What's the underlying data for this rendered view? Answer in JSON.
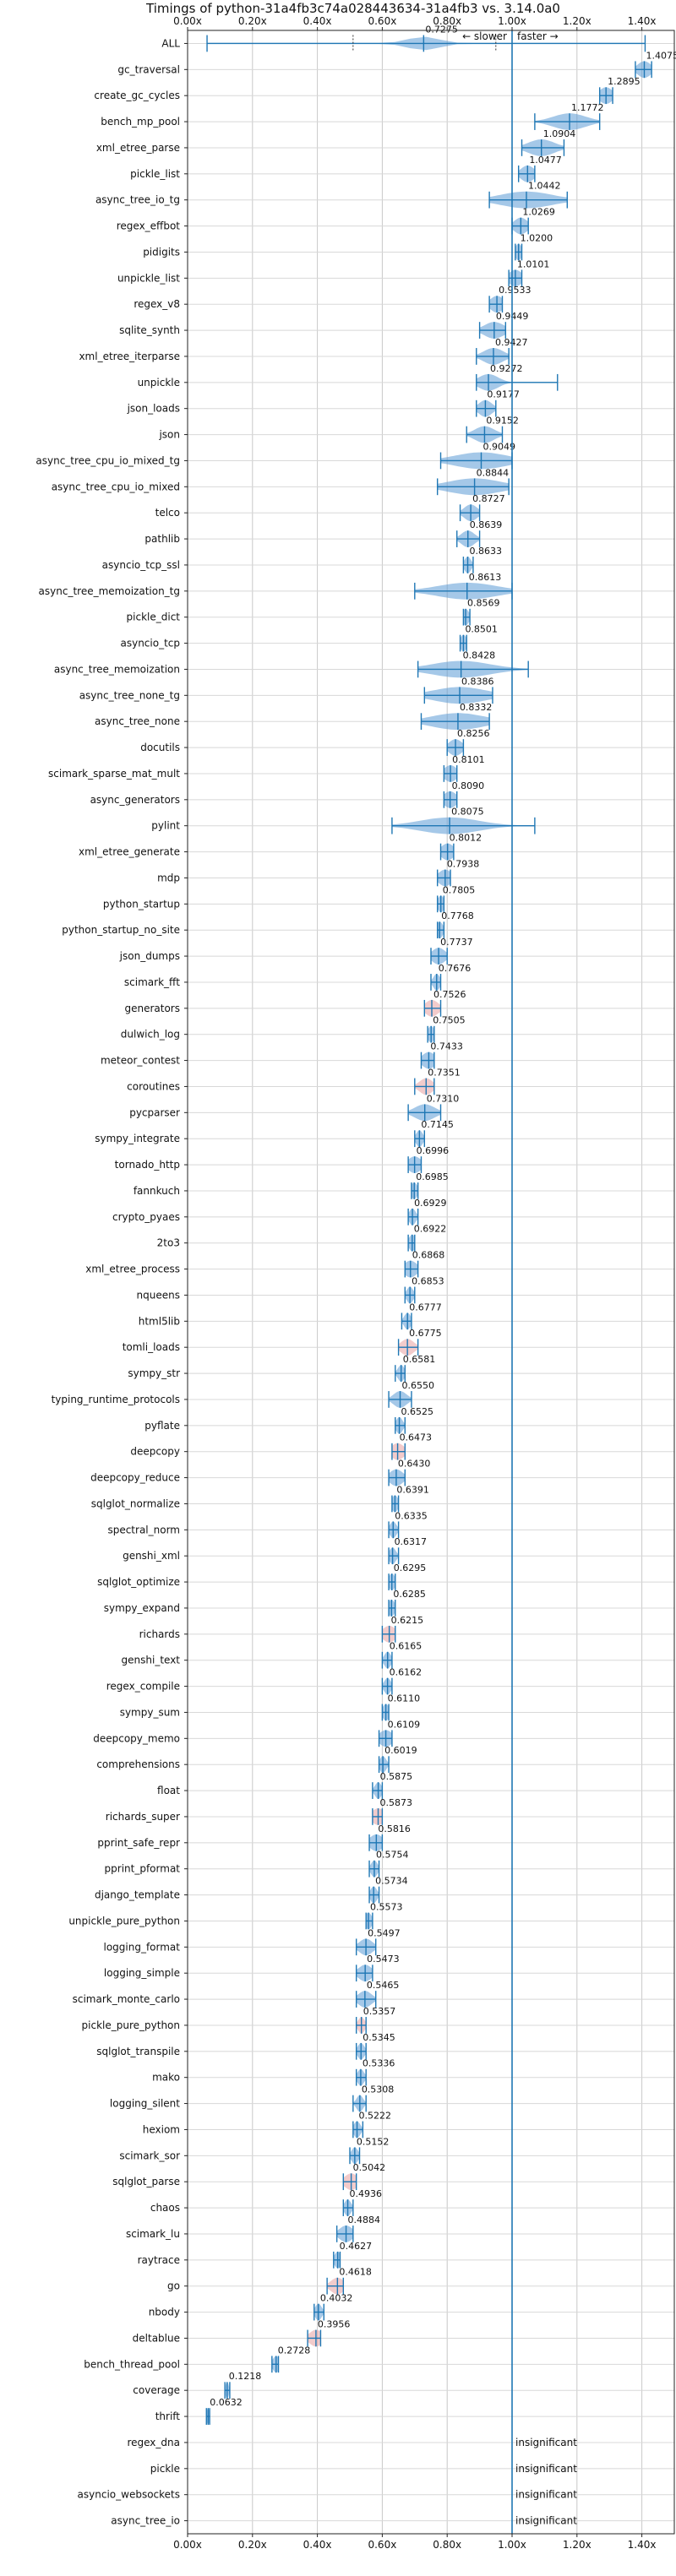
{
  "chart_data": {
    "type": "violin",
    "title": "Timings of python-31a4fb3c74a028443634-31a4fb3 vs. 3.14.0a0",
    "xlim": [
      0.0,
      1.5
    ],
    "xticks": [
      0.0,
      0.2,
      0.4,
      0.6,
      0.8,
      1.0,
      1.2,
      1.4
    ],
    "xtick_labels": [
      "0.00x",
      "0.20x",
      "0.40x",
      "0.60x",
      "0.80x",
      "1.00x",
      "1.20x",
      "1.40x"
    ],
    "grid": true,
    "annotation_slower": "← slower",
    "annotation_faster": "faster →",
    "insignificant_label": "insignificant",
    "benchmarks": [
      {
        "name": "ALL",
        "value": 0.7275,
        "min": 0.06,
        "max": 1.41,
        "spread": 0.05,
        "color": "#5b9bd5"
      },
      {
        "name": "gc_traversal",
        "value": 1.4075,
        "min": 1.38,
        "max": 1.43,
        "spread": 0.02,
        "color": "#5b9bd5"
      },
      {
        "name": "create_gc_cycles",
        "value": 1.2895,
        "min": 1.27,
        "max": 1.31,
        "spread": 0.02,
        "color": "#5b9bd5"
      },
      {
        "name": "bench_mp_pool",
        "value": 1.1772,
        "min": 1.07,
        "max": 1.27,
        "spread": 0.05,
        "color": "#5b9bd5"
      },
      {
        "name": "xml_etree_parse",
        "value": 1.0904,
        "min": 1.03,
        "max": 1.16,
        "spread": 0.04,
        "color": "#5b9bd5"
      },
      {
        "name": "pickle_list",
        "value": 1.0477,
        "min": 1.02,
        "max": 1.07,
        "spread": 0.02,
        "color": "#5b9bd5"
      },
      {
        "name": "async_tree_io_tg",
        "value": 1.0442,
        "min": 0.93,
        "max": 1.17,
        "spread": 0.08,
        "color": "#5b9bd5"
      },
      {
        "name": "regex_effbot",
        "value": 1.0269,
        "min": 1.0,
        "max": 1.05,
        "spread": 0.02,
        "color": "#5b9bd5"
      },
      {
        "name": "pidigits",
        "value": 1.02,
        "min": 1.01,
        "max": 1.03,
        "spread": 0.01,
        "color": "#5b9bd5"
      },
      {
        "name": "unpickle_list",
        "value": 1.0101,
        "min": 0.99,
        "max": 1.03,
        "spread": 0.02,
        "color": "#5b9bd5"
      },
      {
        "name": "regex_v8",
        "value": 0.9533,
        "min": 0.93,
        "max": 0.97,
        "spread": 0.02,
        "color": "#5b9bd5"
      },
      {
        "name": "sqlite_synth",
        "value": 0.9449,
        "min": 0.9,
        "max": 0.98,
        "spread": 0.03,
        "color": "#5b9bd5"
      },
      {
        "name": "xml_etree_iterparse",
        "value": 0.9427,
        "min": 0.89,
        "max": 0.99,
        "spread": 0.03,
        "color": "#5b9bd5"
      },
      {
        "name": "unpickle",
        "value": 0.9272,
        "min": 0.89,
        "max": 1.14,
        "spread": 0.03,
        "color": "#5b9bd5"
      },
      {
        "name": "json_loads",
        "value": 0.9177,
        "min": 0.89,
        "max": 0.95,
        "spread": 0.02,
        "color": "#5b9bd5"
      },
      {
        "name": "json",
        "value": 0.9152,
        "min": 0.86,
        "max": 0.97,
        "spread": 0.03,
        "color": "#5b9bd5"
      },
      {
        "name": "async_tree_cpu_io_mixed_tg",
        "value": 0.9049,
        "min": 0.78,
        "max": 1.0,
        "spread": 0.08,
        "color": "#5b9bd5"
      },
      {
        "name": "async_tree_cpu_io_mixed",
        "value": 0.8844,
        "min": 0.77,
        "max": 0.99,
        "spread": 0.08,
        "color": "#5b9bd5"
      },
      {
        "name": "telco",
        "value": 0.8727,
        "min": 0.84,
        "max": 0.9,
        "spread": 0.02,
        "color": "#5b9bd5"
      },
      {
        "name": "pathlib",
        "value": 0.8639,
        "min": 0.83,
        "max": 0.9,
        "spread": 0.02,
        "color": "#5b9bd5"
      },
      {
        "name": "asyncio_tcp_ssl",
        "value": 0.8633,
        "min": 0.85,
        "max": 0.88,
        "spread": 0.01,
        "color": "#5b9bd5"
      },
      {
        "name": "async_tree_memoization_tg",
        "value": 0.8613,
        "min": 0.7,
        "max": 1.0,
        "spread": 0.09,
        "color": "#5b9bd5"
      },
      {
        "name": "pickle_dict",
        "value": 0.8569,
        "min": 0.85,
        "max": 0.87,
        "spread": 0.01,
        "color": "#5b9bd5"
      },
      {
        "name": "asyncio_tcp",
        "value": 0.8501,
        "min": 0.84,
        "max": 0.86,
        "spread": 0.01,
        "color": "#5b9bd5"
      },
      {
        "name": "async_tree_memoization",
        "value": 0.8428,
        "min": 0.71,
        "max": 1.05,
        "spread": 0.09,
        "color": "#5b9bd5"
      },
      {
        "name": "async_tree_none_tg",
        "value": 0.8386,
        "min": 0.73,
        "max": 0.94,
        "spread": 0.08,
        "color": "#5b9bd5"
      },
      {
        "name": "async_tree_none",
        "value": 0.8332,
        "min": 0.72,
        "max": 0.93,
        "spread": 0.08,
        "color": "#5b9bd5"
      },
      {
        "name": "docutils",
        "value": 0.8256,
        "min": 0.8,
        "max": 0.85,
        "spread": 0.02,
        "color": "#5b9bd5"
      },
      {
        "name": "scimark_sparse_mat_mult",
        "value": 0.8101,
        "min": 0.79,
        "max": 0.83,
        "spread": 0.02,
        "color": "#5b9bd5"
      },
      {
        "name": "async_generators",
        "value": 0.809,
        "min": 0.79,
        "max": 0.83,
        "spread": 0.02,
        "color": "#5b9bd5"
      },
      {
        "name": "pylint",
        "value": 0.8075,
        "min": 0.63,
        "max": 1.07,
        "spread": 0.09,
        "color": "#5b9bd5"
      },
      {
        "name": "xml_etree_generate",
        "value": 0.8012,
        "min": 0.78,
        "max": 0.82,
        "spread": 0.02,
        "color": "#5b9bd5"
      },
      {
        "name": "mdp",
        "value": 0.7938,
        "min": 0.77,
        "max": 0.81,
        "spread": 0.02,
        "color": "#5b9bd5"
      },
      {
        "name": "python_startup",
        "value": 0.7805,
        "min": 0.77,
        "max": 0.79,
        "spread": 0.01,
        "color": "#5b9bd5"
      },
      {
        "name": "python_startup_no_site",
        "value": 0.7768,
        "min": 0.77,
        "max": 0.79,
        "spread": 0.01,
        "color": "#5b9bd5"
      },
      {
        "name": "json_dumps",
        "value": 0.7737,
        "min": 0.75,
        "max": 0.8,
        "spread": 0.02,
        "color": "#5b9bd5"
      },
      {
        "name": "scimark_fft",
        "value": 0.7676,
        "min": 0.75,
        "max": 0.78,
        "spread": 0.01,
        "color": "#5b9bd5"
      },
      {
        "name": "generators",
        "value": 0.7526,
        "min": 0.73,
        "max": 0.78,
        "spread": 0.02,
        "color": "#e8a0a0"
      },
      {
        "name": "dulwich_log",
        "value": 0.7505,
        "min": 0.74,
        "max": 0.76,
        "spread": 0.01,
        "color": "#5b9bd5"
      },
      {
        "name": "meteor_contest",
        "value": 0.7433,
        "min": 0.72,
        "max": 0.76,
        "spread": 0.02,
        "color": "#5b9bd5"
      },
      {
        "name": "coroutines",
        "value": 0.7351,
        "min": 0.7,
        "max": 0.76,
        "spread": 0.02,
        "color": "#e8a0a0"
      },
      {
        "name": "pycparser",
        "value": 0.731,
        "min": 0.68,
        "max": 0.78,
        "spread": 0.03,
        "color": "#5b9bd5"
      },
      {
        "name": "sympy_integrate",
        "value": 0.7145,
        "min": 0.7,
        "max": 0.73,
        "spread": 0.01,
        "color": "#5b9bd5"
      },
      {
        "name": "tornado_http",
        "value": 0.6996,
        "min": 0.68,
        "max": 0.72,
        "spread": 0.02,
        "color": "#5b9bd5"
      },
      {
        "name": "fannkuch",
        "value": 0.6985,
        "min": 0.69,
        "max": 0.71,
        "spread": 0.01,
        "color": "#5b9bd5"
      },
      {
        "name": "crypto_pyaes",
        "value": 0.6929,
        "min": 0.68,
        "max": 0.71,
        "spread": 0.01,
        "color": "#5b9bd5"
      },
      {
        "name": "2to3",
        "value": 0.6922,
        "min": 0.68,
        "max": 0.7,
        "spread": 0.01,
        "color": "#5b9bd5"
      },
      {
        "name": "xml_etree_process",
        "value": 0.6868,
        "min": 0.67,
        "max": 0.71,
        "spread": 0.02,
        "color": "#5b9bd5"
      },
      {
        "name": "nqueens",
        "value": 0.6853,
        "min": 0.67,
        "max": 0.7,
        "spread": 0.01,
        "color": "#5b9bd5"
      },
      {
        "name": "html5lib",
        "value": 0.6777,
        "min": 0.66,
        "max": 0.69,
        "spread": 0.01,
        "color": "#5b9bd5"
      },
      {
        "name": "tomli_loads",
        "value": 0.6775,
        "min": 0.65,
        "max": 0.71,
        "spread": 0.02,
        "color": "#e8a0a0"
      },
      {
        "name": "sympy_str",
        "value": 0.6581,
        "min": 0.64,
        "max": 0.67,
        "spread": 0.01,
        "color": "#5b9bd5"
      },
      {
        "name": "typing_runtime_protocols",
        "value": 0.655,
        "min": 0.62,
        "max": 0.69,
        "spread": 0.02,
        "color": "#5b9bd5"
      },
      {
        "name": "pyflate",
        "value": 0.6525,
        "min": 0.64,
        "max": 0.67,
        "spread": 0.01,
        "color": "#5b9bd5"
      },
      {
        "name": "deepcopy",
        "value": 0.6473,
        "min": 0.63,
        "max": 0.67,
        "spread": 0.02,
        "color": "#e8a0a0"
      },
      {
        "name": "deepcopy_reduce",
        "value": 0.643,
        "min": 0.62,
        "max": 0.67,
        "spread": 0.02,
        "color": "#5b9bd5"
      },
      {
        "name": "sqlglot_normalize",
        "value": 0.6391,
        "min": 0.63,
        "max": 0.65,
        "spread": 0.01,
        "color": "#5b9bd5"
      },
      {
        "name": "spectral_norm",
        "value": 0.6335,
        "min": 0.62,
        "max": 0.65,
        "spread": 0.01,
        "color": "#5b9bd5"
      },
      {
        "name": "genshi_xml",
        "value": 0.6317,
        "min": 0.62,
        "max": 0.65,
        "spread": 0.01,
        "color": "#5b9bd5"
      },
      {
        "name": "sqlglot_optimize",
        "value": 0.6295,
        "min": 0.62,
        "max": 0.64,
        "spread": 0.01,
        "color": "#5b9bd5"
      },
      {
        "name": "sympy_expand",
        "value": 0.6285,
        "min": 0.62,
        "max": 0.64,
        "spread": 0.01,
        "color": "#5b9bd5"
      },
      {
        "name": "richards",
        "value": 0.6215,
        "min": 0.6,
        "max": 0.64,
        "spread": 0.02,
        "color": "#e8a0a0"
      },
      {
        "name": "genshi_text",
        "value": 0.6165,
        "min": 0.6,
        "max": 0.63,
        "spread": 0.01,
        "color": "#5b9bd5"
      },
      {
        "name": "regex_compile",
        "value": 0.6162,
        "min": 0.6,
        "max": 0.63,
        "spread": 0.01,
        "color": "#5b9bd5"
      },
      {
        "name": "sympy_sum",
        "value": 0.611,
        "min": 0.6,
        "max": 0.62,
        "spread": 0.01,
        "color": "#5b9bd5"
      },
      {
        "name": "deepcopy_memo",
        "value": 0.6109,
        "min": 0.59,
        "max": 0.63,
        "spread": 0.02,
        "color": "#5b9bd5"
      },
      {
        "name": "comprehensions",
        "value": 0.6019,
        "min": 0.59,
        "max": 0.62,
        "spread": 0.01,
        "color": "#5b9bd5"
      },
      {
        "name": "float",
        "value": 0.5875,
        "min": 0.57,
        "max": 0.6,
        "spread": 0.01,
        "color": "#5b9bd5"
      },
      {
        "name": "richards_super",
        "value": 0.5873,
        "min": 0.57,
        "max": 0.6,
        "spread": 0.02,
        "color": "#e8a0a0"
      },
      {
        "name": "pprint_safe_repr",
        "value": 0.5816,
        "min": 0.56,
        "max": 0.6,
        "spread": 0.02,
        "color": "#5b9bd5"
      },
      {
        "name": "pprint_pformat",
        "value": 0.5754,
        "min": 0.56,
        "max": 0.59,
        "spread": 0.01,
        "color": "#5b9bd5"
      },
      {
        "name": "django_template",
        "value": 0.5734,
        "min": 0.56,
        "max": 0.59,
        "spread": 0.01,
        "color": "#5b9bd5"
      },
      {
        "name": "unpickle_pure_python",
        "value": 0.5573,
        "min": 0.55,
        "max": 0.57,
        "spread": 0.01,
        "color": "#5b9bd5"
      },
      {
        "name": "logging_format",
        "value": 0.5497,
        "min": 0.52,
        "max": 0.58,
        "spread": 0.02,
        "color": "#5b9bd5"
      },
      {
        "name": "logging_simple",
        "value": 0.5473,
        "min": 0.52,
        "max": 0.57,
        "spread": 0.02,
        "color": "#5b9bd5"
      },
      {
        "name": "scimark_monte_carlo",
        "value": 0.5465,
        "min": 0.52,
        "max": 0.58,
        "spread": 0.02,
        "color": "#5b9bd5"
      },
      {
        "name": "pickle_pure_python",
        "value": 0.5357,
        "min": 0.52,
        "max": 0.55,
        "spread": 0.01,
        "color": "#e8a0a0"
      },
      {
        "name": "sqlglot_transpile",
        "value": 0.5345,
        "min": 0.52,
        "max": 0.55,
        "spread": 0.01,
        "color": "#5b9bd5"
      },
      {
        "name": "mako",
        "value": 0.5336,
        "min": 0.52,
        "max": 0.55,
        "spread": 0.01,
        "color": "#5b9bd5"
      },
      {
        "name": "logging_silent",
        "value": 0.5308,
        "min": 0.51,
        "max": 0.55,
        "spread": 0.01,
        "color": "#5b9bd5"
      },
      {
        "name": "hexiom",
        "value": 0.5222,
        "min": 0.51,
        "max": 0.54,
        "spread": 0.01,
        "color": "#5b9bd5"
      },
      {
        "name": "scimark_sor",
        "value": 0.5152,
        "min": 0.5,
        "max": 0.53,
        "spread": 0.01,
        "color": "#5b9bd5"
      },
      {
        "name": "sqlglot_parse",
        "value": 0.5042,
        "min": 0.48,
        "max": 0.52,
        "spread": 0.02,
        "color": "#e8a0a0"
      },
      {
        "name": "chaos",
        "value": 0.4936,
        "min": 0.48,
        "max": 0.51,
        "spread": 0.01,
        "color": "#5b9bd5"
      },
      {
        "name": "scimark_lu",
        "value": 0.4884,
        "min": 0.46,
        "max": 0.51,
        "spread": 0.02,
        "color": "#5b9bd5"
      },
      {
        "name": "raytrace",
        "value": 0.4627,
        "min": 0.45,
        "max": 0.47,
        "spread": 0.01,
        "color": "#5b9bd5"
      },
      {
        "name": "go",
        "value": 0.4618,
        "min": 0.43,
        "max": 0.48,
        "spread": 0.02,
        "color": "#e8a0a0"
      },
      {
        "name": "nbody",
        "value": 0.4032,
        "min": 0.39,
        "max": 0.42,
        "spread": 0.01,
        "color": "#5b9bd5"
      },
      {
        "name": "deltablue",
        "value": 0.3956,
        "min": 0.37,
        "max": 0.41,
        "spread": 0.02,
        "color": "#e8a0a0"
      },
      {
        "name": "bench_thread_pool",
        "value": 0.2728,
        "min": 0.26,
        "max": 0.28,
        "spread": 0.01,
        "color": "#5b9bd5"
      },
      {
        "name": "coverage",
        "value": 0.1218,
        "min": 0.115,
        "max": 0.13,
        "spread": 0.005,
        "color": "#5b9bd5"
      },
      {
        "name": "thrift",
        "value": 0.0632,
        "min": 0.058,
        "max": 0.068,
        "spread": 0.004,
        "color": "#5b9bd5"
      },
      {
        "name": "regex_dna",
        "value": null,
        "insignificant": true
      },
      {
        "name": "pickle",
        "value": null,
        "insignificant": true
      },
      {
        "name": "asyncio_websockets",
        "value": null,
        "insignificant": true
      },
      {
        "name": "async_tree_io",
        "value": null,
        "insignificant": true
      }
    ]
  }
}
